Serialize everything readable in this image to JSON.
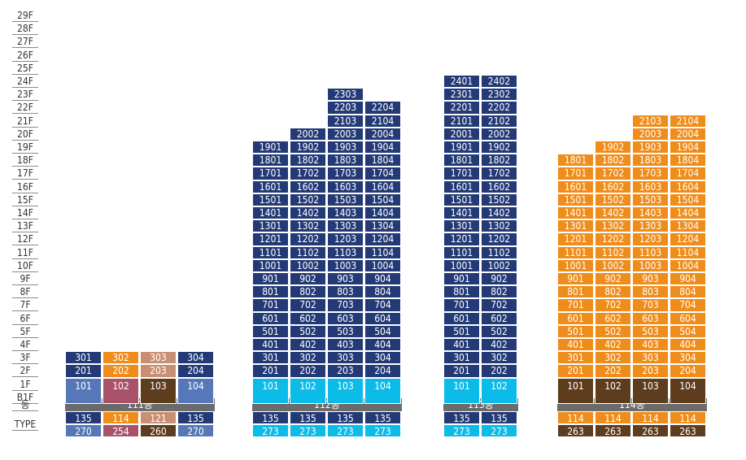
{
  "floor_labels": [
    "29F",
    "28F",
    "27F",
    "26F",
    "25F",
    "24F",
    "23F",
    "22F",
    "21F",
    "20F",
    "19F",
    "18F",
    "17F",
    "16F",
    "15F",
    "14F",
    "13F",
    "12F",
    "11F",
    "10F",
    "9F",
    "8F",
    "7F",
    "6F",
    "5F",
    "4F",
    "3F",
    "2F",
    "1F",
    "B1F"
  ],
  "row_labels": {
    "dong": "동",
    "type": "TYPE"
  },
  "colors": {
    "navy": "#233a76",
    "sky": "#0bbbe8",
    "orange": "#ef8d1c",
    "brown": "#5e3c1e",
    "blue": "#5678b8",
    "rose": "#a8526a",
    "tan": "#c98f74",
    "gray": "#6b6b6b"
  },
  "buildings": [
    {
      "dong": "111동",
      "columns": [
        {
          "types": [
            "135",
            "270"
          ],
          "type_colors": [
            "navy",
            "blue"
          ],
          "units": [
            "301",
            "201",
            "101"
          ],
          "colors": [
            "navy",
            "navy",
            "blue"
          ]
        },
        {
          "types": [
            "114",
            "254"
          ],
          "type_colors": [
            "orange",
            "rose"
          ],
          "units": [
            "302",
            "202",
            "102"
          ],
          "colors": [
            "orange",
            "orange",
            "rose"
          ]
        },
        {
          "types": [
            "121",
            "260"
          ],
          "type_colors": [
            "tan",
            "brown"
          ],
          "units": [
            "303",
            "203",
            "103"
          ],
          "colors": [
            "tan",
            "tan",
            "brown"
          ]
        },
        {
          "types": [
            "135",
            "270"
          ],
          "type_colors": [
            "navy",
            "blue"
          ],
          "units": [
            "304",
            "204",
            "104"
          ],
          "colors": [
            "navy",
            "navy",
            "blue"
          ]
        }
      ]
    },
    {
      "dong": "112동",
      "columns": [
        {
          "types": [
            "135",
            "273"
          ],
          "type_colors": [
            "navy",
            "sky"
          ],
          "top": 19,
          "base": "sky",
          "main": "navy"
        },
        {
          "types": [
            "135",
            "273"
          ],
          "type_colors": [
            "navy",
            "sky"
          ],
          "top": 20,
          "base": "sky",
          "main": "navy"
        },
        {
          "types": [
            "135",
            "273"
          ],
          "type_colors": [
            "navy",
            "sky"
          ],
          "top": 23,
          "base": "sky",
          "main": "navy"
        },
        {
          "types": [
            "135",
            "273"
          ],
          "type_colors": [
            "navy",
            "sky"
          ],
          "top": 22,
          "base": "sky",
          "main": "navy"
        }
      ]
    },
    {
      "dong": "113동",
      "columns": [
        {
          "types": [
            "135",
            "273"
          ],
          "type_colors": [
            "navy",
            "sky"
          ],
          "top": 24,
          "base": "sky",
          "main": "navy"
        },
        {
          "types": [
            "135",
            "273"
          ],
          "type_colors": [
            "navy",
            "sky"
          ],
          "top": 24,
          "base": "sky",
          "main": "navy"
        }
      ]
    },
    {
      "dong": "114동",
      "columns": [
        {
          "types": [
            "114",
            "263"
          ],
          "type_colors": [
            "orange",
            "brown"
          ],
          "top": 18,
          "base": "brown",
          "main": "orange"
        },
        {
          "types": [
            "114",
            "263"
          ],
          "type_colors": [
            "orange",
            "brown"
          ],
          "top": 19,
          "base": "brown",
          "main": "orange"
        },
        {
          "types": [
            "114",
            "263"
          ],
          "type_colors": [
            "orange",
            "brown"
          ],
          "top": 21,
          "base": "brown",
          "main": "orange"
        },
        {
          "types": [
            "114",
            "263"
          ],
          "type_colors": [
            "orange",
            "brown"
          ],
          "top": 21,
          "base": "brown",
          "main": "orange"
        }
      ]
    }
  ]
}
